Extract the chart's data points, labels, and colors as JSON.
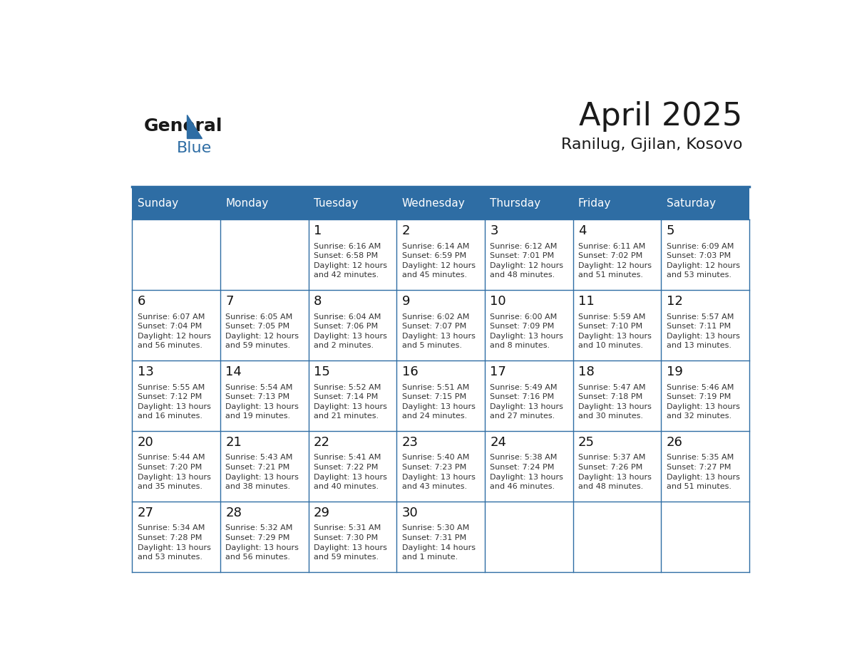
{
  "title": "April 2025",
  "subtitle": "Ranilug, Gjilan, Kosovo",
  "header_bg": "#2E6DA4",
  "header_text_color": "#FFFFFF",
  "border_color": "#2E6DA4",
  "day_number_color": "#111111",
  "text_color": "#333333",
  "days_of_week": [
    "Sunday",
    "Monday",
    "Tuesday",
    "Wednesday",
    "Thursday",
    "Friday",
    "Saturday"
  ],
  "weeks": [
    [
      {
        "day": "",
        "sunrise": "",
        "sunset": "",
        "daylight": ""
      },
      {
        "day": "",
        "sunrise": "",
        "sunset": "",
        "daylight": ""
      },
      {
        "day": "1",
        "sunrise": "Sunrise: 6:16 AM",
        "sunset": "Sunset: 6:58 PM",
        "daylight": "Daylight: 12 hours\nand 42 minutes."
      },
      {
        "day": "2",
        "sunrise": "Sunrise: 6:14 AM",
        "sunset": "Sunset: 6:59 PM",
        "daylight": "Daylight: 12 hours\nand 45 minutes."
      },
      {
        "day": "3",
        "sunrise": "Sunrise: 6:12 AM",
        "sunset": "Sunset: 7:01 PM",
        "daylight": "Daylight: 12 hours\nand 48 minutes."
      },
      {
        "day": "4",
        "sunrise": "Sunrise: 6:11 AM",
        "sunset": "Sunset: 7:02 PM",
        "daylight": "Daylight: 12 hours\nand 51 minutes."
      },
      {
        "day": "5",
        "sunrise": "Sunrise: 6:09 AM",
        "sunset": "Sunset: 7:03 PM",
        "daylight": "Daylight: 12 hours\nand 53 minutes."
      }
    ],
    [
      {
        "day": "6",
        "sunrise": "Sunrise: 6:07 AM",
        "sunset": "Sunset: 7:04 PM",
        "daylight": "Daylight: 12 hours\nand 56 minutes."
      },
      {
        "day": "7",
        "sunrise": "Sunrise: 6:05 AM",
        "sunset": "Sunset: 7:05 PM",
        "daylight": "Daylight: 12 hours\nand 59 minutes."
      },
      {
        "day": "8",
        "sunrise": "Sunrise: 6:04 AM",
        "sunset": "Sunset: 7:06 PM",
        "daylight": "Daylight: 13 hours\nand 2 minutes."
      },
      {
        "day": "9",
        "sunrise": "Sunrise: 6:02 AM",
        "sunset": "Sunset: 7:07 PM",
        "daylight": "Daylight: 13 hours\nand 5 minutes."
      },
      {
        "day": "10",
        "sunrise": "Sunrise: 6:00 AM",
        "sunset": "Sunset: 7:09 PM",
        "daylight": "Daylight: 13 hours\nand 8 minutes."
      },
      {
        "day": "11",
        "sunrise": "Sunrise: 5:59 AM",
        "sunset": "Sunset: 7:10 PM",
        "daylight": "Daylight: 13 hours\nand 10 minutes."
      },
      {
        "day": "12",
        "sunrise": "Sunrise: 5:57 AM",
        "sunset": "Sunset: 7:11 PM",
        "daylight": "Daylight: 13 hours\nand 13 minutes."
      }
    ],
    [
      {
        "day": "13",
        "sunrise": "Sunrise: 5:55 AM",
        "sunset": "Sunset: 7:12 PM",
        "daylight": "Daylight: 13 hours\nand 16 minutes."
      },
      {
        "day": "14",
        "sunrise": "Sunrise: 5:54 AM",
        "sunset": "Sunset: 7:13 PM",
        "daylight": "Daylight: 13 hours\nand 19 minutes."
      },
      {
        "day": "15",
        "sunrise": "Sunrise: 5:52 AM",
        "sunset": "Sunset: 7:14 PM",
        "daylight": "Daylight: 13 hours\nand 21 minutes."
      },
      {
        "day": "16",
        "sunrise": "Sunrise: 5:51 AM",
        "sunset": "Sunset: 7:15 PM",
        "daylight": "Daylight: 13 hours\nand 24 minutes."
      },
      {
        "day": "17",
        "sunrise": "Sunrise: 5:49 AM",
        "sunset": "Sunset: 7:16 PM",
        "daylight": "Daylight: 13 hours\nand 27 minutes."
      },
      {
        "day": "18",
        "sunrise": "Sunrise: 5:47 AM",
        "sunset": "Sunset: 7:18 PM",
        "daylight": "Daylight: 13 hours\nand 30 minutes."
      },
      {
        "day": "19",
        "sunrise": "Sunrise: 5:46 AM",
        "sunset": "Sunset: 7:19 PM",
        "daylight": "Daylight: 13 hours\nand 32 minutes."
      }
    ],
    [
      {
        "day": "20",
        "sunrise": "Sunrise: 5:44 AM",
        "sunset": "Sunset: 7:20 PM",
        "daylight": "Daylight: 13 hours\nand 35 minutes."
      },
      {
        "day": "21",
        "sunrise": "Sunrise: 5:43 AM",
        "sunset": "Sunset: 7:21 PM",
        "daylight": "Daylight: 13 hours\nand 38 minutes."
      },
      {
        "day": "22",
        "sunrise": "Sunrise: 5:41 AM",
        "sunset": "Sunset: 7:22 PM",
        "daylight": "Daylight: 13 hours\nand 40 minutes."
      },
      {
        "day": "23",
        "sunrise": "Sunrise: 5:40 AM",
        "sunset": "Sunset: 7:23 PM",
        "daylight": "Daylight: 13 hours\nand 43 minutes."
      },
      {
        "day": "24",
        "sunrise": "Sunrise: 5:38 AM",
        "sunset": "Sunset: 7:24 PM",
        "daylight": "Daylight: 13 hours\nand 46 minutes."
      },
      {
        "day": "25",
        "sunrise": "Sunrise: 5:37 AM",
        "sunset": "Sunset: 7:26 PM",
        "daylight": "Daylight: 13 hours\nand 48 minutes."
      },
      {
        "day": "26",
        "sunrise": "Sunrise: 5:35 AM",
        "sunset": "Sunset: 7:27 PM",
        "daylight": "Daylight: 13 hours\nand 51 minutes."
      }
    ],
    [
      {
        "day": "27",
        "sunrise": "Sunrise: 5:34 AM",
        "sunset": "Sunset: 7:28 PM",
        "daylight": "Daylight: 13 hours\nand 53 minutes."
      },
      {
        "day": "28",
        "sunrise": "Sunrise: 5:32 AM",
        "sunset": "Sunset: 7:29 PM",
        "daylight": "Daylight: 13 hours\nand 56 minutes."
      },
      {
        "day": "29",
        "sunrise": "Sunrise: 5:31 AM",
        "sunset": "Sunset: 7:30 PM",
        "daylight": "Daylight: 13 hours\nand 59 minutes."
      },
      {
        "day": "30",
        "sunrise": "Sunrise: 5:30 AM",
        "sunset": "Sunset: 7:31 PM",
        "daylight": "Daylight: 14 hours\nand 1 minute."
      },
      {
        "day": "",
        "sunrise": "",
        "sunset": "",
        "daylight": ""
      },
      {
        "day": "",
        "sunrise": "",
        "sunset": "",
        "daylight": ""
      },
      {
        "day": "",
        "sunrise": "",
        "sunset": "",
        "daylight": ""
      }
    ]
  ]
}
